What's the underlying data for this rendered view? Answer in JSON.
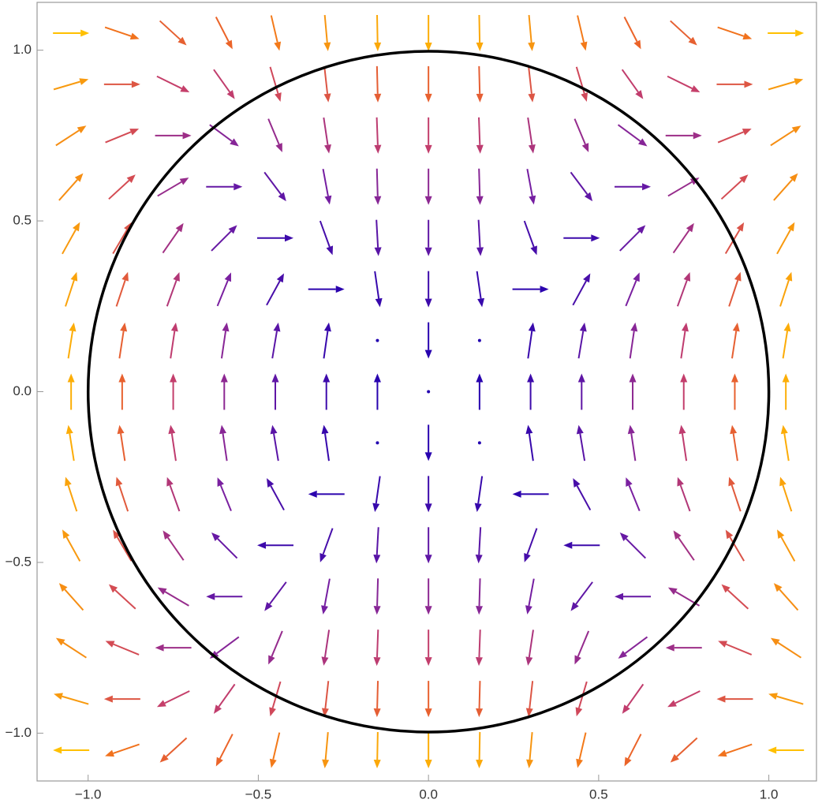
{
  "chart_data": {
    "type": "vector",
    "xlim": [
      -1.15,
      1.14
    ],
    "ylim": [
      -1.14,
      1.14
    ],
    "xticks": [
      {
        "value": -1,
        "label": "−1.0"
      },
      {
        "value": -0.5,
        "label": "−0.5"
      },
      {
        "value": 0,
        "label": "0.0"
      },
      {
        "value": 0.5,
        "label": "0.5"
      },
      {
        "value": 1,
        "label": "1.0"
      }
    ],
    "yticks": [
      {
        "value": -1,
        "label": "−1.0"
      },
      {
        "value": -0.5,
        "label": "−0.5"
      },
      {
        "value": 0,
        "label": "0.0"
      },
      {
        "value": 0.5,
        "label": "0.5"
      },
      {
        "value": 1,
        "label": "1.0"
      }
    ],
    "color_scale": [
      "#2200b0",
      "#7a20a0",
      "#c84068",
      "#f06a20",
      "#ffc000"
    ],
    "circle_center": [
      0,
      0
    ],
    "circle_radius": 1,
    "circle_color": "#000000",
    "x": [
      -1.05,
      -0.9,
      -0.75,
      -0.6,
      -0.45,
      -0.3,
      -0.15,
      0,
      0.15,
      0.3,
      0.45,
      0.6,
      0.75,
      0.9,
      1.05
    ],
    "y": [
      -1.05,
      -0.9,
      -0.75,
      -0.6,
      -0.45,
      -0.3,
      -0.15,
      0,
      0.15,
      0.3,
      0.45,
      0.6,
      0.75,
      0.9,
      1.05
    ],
    "u": [
      [
        -1.16,
        -0.85,
        -0.59,
        -0.38,
        -0.21,
        -0.09,
        -0.02,
        0,
        -0.02,
        -0.09,
        -0.21,
        -0.38,
        -0.59,
        -0.85,
        -1.16
      ],
      [
        -0.99,
        -0.73,
        -0.51,
        -0.32,
        -0.18,
        -0.08,
        -0.02,
        0,
        -0.02,
        -0.08,
        -0.18,
        -0.32,
        -0.51,
        -0.73,
        -0.99
      ],
      [
        -0.83,
        -0.61,
        -0.42,
        -0.27,
        -0.15,
        -0.07,
        -0.02,
        0,
        -0.02,
        -0.07,
        -0.15,
        -0.27,
        -0.42,
        -0.61,
        -0.83
      ],
      [
        -0.66,
        -0.49,
        -0.34,
        -0.22,
        -0.12,
        -0.05,
        -0.01,
        0,
        -0.01,
        -0.05,
        -0.12,
        -0.22,
        -0.34,
        -0.49,
        -0.66
      ],
      [
        -0.5,
        -0.36,
        -0.25,
        -0.16,
        -0.09,
        -0.04,
        -0.01,
        0,
        -0.01,
        -0.04,
        -0.09,
        -0.16,
        -0.25,
        -0.36,
        -0.5
      ],
      [
        -0.33,
        -0.24,
        -0.17,
        -0.11,
        -0.06,
        -0.03,
        -0.01,
        0,
        -0.01,
        -0.03,
        -0.06,
        -0.11,
        -0.17,
        -0.24,
        -0.33
      ],
      [
        -0.17,
        -0.12,
        -0.08,
        -0.05,
        -0.03,
        -0.01,
        0,
        0,
        0,
        -0.01,
        -0.03,
        -0.05,
        -0.08,
        -0.12,
        -0.17
      ],
      [
        0,
        0,
        0,
        0,
        0,
        0,
        0,
        0,
        0,
        0,
        0,
        0,
        0,
        0,
        0
      ],
      [
        0.17,
        0.12,
        0.08,
        0.05,
        0.03,
        0.01,
        0,
        0,
        0,
        0.01,
        0.03,
        0.05,
        0.08,
        0.12,
        0.17
      ],
      [
        0.33,
        0.24,
        0.17,
        0.11,
        0.06,
        0.03,
        0.01,
        0,
        0.01,
        0.03,
        0.06,
        0.11,
        0.17,
        0.24,
        0.33
      ],
      [
        0.5,
        0.36,
        0.25,
        0.16,
        0.09,
        0.04,
        0.01,
        0,
        0.01,
        0.04,
        0.09,
        0.16,
        0.25,
        0.36,
        0.5
      ],
      [
        0.66,
        0.49,
        0.34,
        0.22,
        0.12,
        0.05,
        0.01,
        0,
        0.01,
        0.05,
        0.12,
        0.22,
        0.34,
        0.49,
        0.66
      ],
      [
        0.83,
        0.61,
        0.42,
        0.27,
        0.15,
        0.07,
        0.02,
        0,
        0.02,
        0.07,
        0.15,
        0.27,
        0.42,
        0.61,
        0.83
      ],
      [
        0.99,
        0.73,
        0.51,
        0.32,
        0.18,
        0.08,
        0.02,
        0,
        0.02,
        0.08,
        0.18,
        0.32,
        0.51,
        0.73,
        0.99
      ],
      [
        1.16,
        0.85,
        0.59,
        0.38,
        0.21,
        0.09,
        0.02,
        0,
        0.02,
        0.09,
        0.21,
        0.38,
        0.59,
        0.85,
        1.16
      ]
    ],
    "v": [
      [
        0,
        -0.29,
        -0.54,
        -0.74,
        -0.9,
        -1.01,
        -1.08,
        -1.1,
        -1.08,
        -1.01,
        -0.9,
        -0.74,
        -0.54,
        -0.29,
        0
      ],
      [
        0.29,
        0,
        -0.25,
        -0.45,
        -0.61,
        -0.72,
        -0.79,
        -0.81,
        -0.79,
        -0.72,
        -0.61,
        -0.45,
        -0.25,
        0,
        0.29
      ],
      [
        0.54,
        0.25,
        0,
        -0.2,
        -0.36,
        -0.47,
        -0.54,
        -0.56,
        -0.54,
        -0.47,
        -0.36,
        -0.2,
        0,
        0.25,
        0.54
      ],
      [
        0.74,
        0.45,
        0.2,
        0,
        -0.16,
        -0.27,
        -0.34,
        -0.36,
        -0.34,
        -0.27,
        -0.16,
        0,
        0.2,
        0.45,
        0.74
      ],
      [
        0.9,
        0.61,
        0.36,
        0.16,
        0,
        -0.11,
        -0.18,
        -0.2,
        -0.18,
        -0.11,
        0,
        0.16,
        0.36,
        0.61,
        0.9
      ],
      [
        1.01,
        0.72,
        0.47,
        0.27,
        0.11,
        0,
        -0.07,
        -0.09,
        -0.07,
        0,
        0.11,
        0.27,
        0.47,
        0.72,
        1.01
      ],
      [
        1.08,
        0.79,
        0.54,
        0.34,
        0.18,
        0.07,
        0,
        -0.02,
        0,
        0.07,
        0.18,
        0.34,
        0.54,
        0.79,
        1.08
      ],
      [
        1.1,
        0.81,
        0.56,
        0.36,
        0.2,
        0.09,
        0.02,
        0,
        0.02,
        0.09,
        0.2,
        0.36,
        0.56,
        0.81,
        1.1
      ],
      [
        1.08,
        0.79,
        0.54,
        0.34,
        0.18,
        0.07,
        0,
        -0.02,
        0,
        0.07,
        0.18,
        0.34,
        0.54,
        0.79,
        1.08
      ],
      [
        1.01,
        0.72,
        0.47,
        0.27,
        0.11,
        0,
        -0.07,
        -0.09,
        -0.07,
        0,
        0.11,
        0.27,
        0.47,
        0.72,
        1.01
      ],
      [
        0.9,
        0.61,
        0.36,
        0.16,
        0,
        -0.11,
        -0.18,
        -0.2,
        -0.18,
        -0.11,
        0,
        0.16,
        0.36,
        0.61,
        0.9
      ],
      [
        0.74,
        0.45,
        0.2,
        0,
        -0.16,
        -0.27,
        -0.34,
        -0.36,
        -0.34,
        -0.27,
        -0.16,
        0,
        0.2,
        0.45,
        0.74
      ],
      [
        0.54,
        0.25,
        0,
        -0.2,
        -0.36,
        -0.47,
        -0.54,
        -0.56,
        -0.54,
        -0.47,
        -0.36,
        -0.2,
        0,
        0.25,
        0.54
      ],
      [
        0.29,
        0,
        -0.25,
        -0.45,
        -0.61,
        -0.72,
        -0.79,
        -0.81,
        -0.79,
        -0.72,
        -0.61,
        -0.45,
        -0.25,
        0,
        0.29
      ],
      [
        0,
        -0.29,
        -0.54,
        -0.74,
        -0.9,
        -1.01,
        -1.08,
        -1.1,
        -1.08,
        -1.01,
        -0.9,
        -0.74,
        -0.54,
        -0.29,
        0
      ]
    ]
  }
}
